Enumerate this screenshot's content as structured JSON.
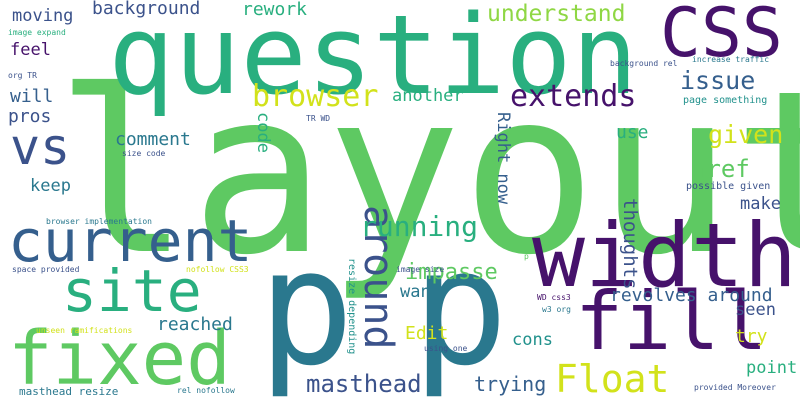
{
  "palette": {
    "dark_purple": "#46126b",
    "indigo": "#3b528b",
    "blue": "#355f8d",
    "teal": "#2a788e",
    "sea_green": "#21918c",
    "green": "#29af7f",
    "light_green": "#5ec962",
    "lime": "#8fd744",
    "yellow": "#d2e21b"
  },
  "words": {
    "layout": "layout",
    "question": "question",
    "css": "CSS",
    "p_left": "p",
    "p_right": "p",
    "width": "width",
    "current": "current",
    "fixed": "fixed",
    "fill": "fill",
    "site": "site",
    "vs": "vs",
    "around": "around",
    "float": "Float",
    "browser": "browser",
    "extends": "extends",
    "understand": "understand",
    "issue": "issue",
    "running": "running",
    "masthead": "masthead",
    "background": "background",
    "rework": "rework",
    "moving": "moving",
    "feel": "feel",
    "will": "will",
    "pros": "pros",
    "comment": "comment",
    "keep": "keep",
    "another": "another",
    "code": "code",
    "right_now": "Right now",
    "given": "given",
    "href": "href",
    "use": "use",
    "make": "make",
    "thoughts": "thoughts",
    "impasse": "impasse",
    "want": "want",
    "revolves_around": "revolves around",
    "seen": "seen",
    "try": "try",
    "reached": "reached",
    "edit": "Edit",
    "cons": "cons",
    "point": "point",
    "trying": "trying",
    "resize_depending": "resize depending",
    "image_expand": "image expand",
    "org_tr": "org TR",
    "background_rel": "background rel",
    "increase_traffic": "increase traffic",
    "page_something": "page something",
    "tr_wd": "TR WD",
    "size_code": "size code",
    "possible_given": "possible given",
    "browser_implementation": "browser implementation",
    "space_provided": "space provided",
    "nofollow_css3": "nofollow CSS3",
    "image_size": "image size",
    "wd_css3": "WD css3",
    "w3_org": "w3 org",
    "unseen_ramifications": "unseen ramifications",
    "using_one": "using one",
    "masthead_resize": "masthead resize",
    "rel_nofollow": "rel nofollow",
    "provided_moreover": "provided Moreover",
    "p_small": "p"
  }
}
